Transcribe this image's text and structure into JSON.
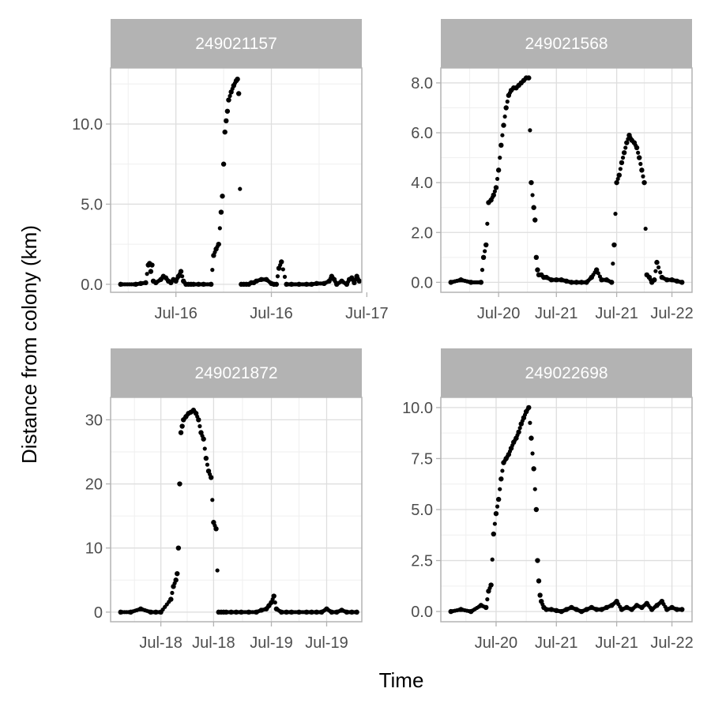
{
  "figure": {
    "xlabel": "Time",
    "ylabel": "Distance from colony (km)"
  },
  "colors": {
    "strip_fill": "#b3b3b3",
    "strip_text": "#ffffff",
    "panel_border": "#b3b3b3",
    "grid_major": "#dedede",
    "grid_minor": "#efefef",
    "point": "#000000",
    "tick_label": "#4d4d4d"
  },
  "chart_data": [
    {
      "type": "scatter",
      "id": "249021157",
      "title": "249021157",
      "xlabel": "Time",
      "ylabel": "Distance from colony (km)",
      "xlim": [
        0,
        100
      ],
      "ylim": [
        -0.5,
        13.5
      ],
      "y_ticks": [
        0,
        5,
        10
      ],
      "y_tick_labels": [
        "0.0",
        "5.0",
        "10.0"
      ],
      "x_ticks": [
        26,
        64,
        102
      ],
      "x_tick_labels": [
        "Jul-16",
        "Jul-16",
        "Jul-17"
      ],
      "grid": true,
      "x": [
        4,
        10,
        12,
        14,
        15,
        15.5,
        16,
        16.5,
        17,
        18,
        20,
        21,
        22,
        23,
        24,
        25,
        26,
        27,
        28,
        29,
        30,
        31,
        32,
        33,
        35,
        37,
        40,
        41,
        42,
        43,
        44,
        44.5,
        45,
        45.5,
        46,
        46.5,
        47,
        48,
        49,
        50,
        50.5,
        51,
        52,
        53,
        54,
        55,
        56,
        57,
        58,
        60,
        62,
        64,
        65,
        66,
        67,
        68,
        70,
        72,
        75,
        78,
        80,
        82,
        85,
        87,
        88,
        89,
        90,
        92,
        94,
        95,
        96,
        97,
        98,
        99
      ],
      "y": [
        0,
        0,
        0.05,
        0.1,
        1.2,
        1.3,
        0.8,
        1.2,
        0.2,
        0.1,
        0.3,
        0.5,
        0.4,
        0.2,
        0.1,
        0.3,
        0.2,
        0.5,
        0.8,
        0.2,
        0,
        0,
        0,
        0,
        0,
        0,
        0,
        1.8,
        2.2,
        2.5,
        4.5,
        5.5,
        7.5,
        9.5,
        10.2,
        10.8,
        11.5,
        12.0,
        12.4,
        12.7,
        12.8,
        11.9,
        0,
        0,
        0,
        0,
        0.1,
        0.1,
        0.2,
        0.3,
        0.3,
        0.05,
        0,
        0,
        1.0,
        1.4,
        0,
        0,
        0,
        0,
        0,
        0.05,
        0.05,
        0.2,
        0.5,
        0.3,
        0,
        0.2,
        0,
        0.3,
        0.4,
        0.1,
        0.5,
        0.2
      ]
    },
    {
      "type": "scatter",
      "id": "249021568",
      "title": "249021568",
      "xlabel": "Time",
      "ylabel": "Distance from colony (km)",
      "xlim": [
        0,
        100
      ],
      "ylim": [
        -0.4,
        8.6
      ],
      "y_ticks": [
        0,
        2,
        4,
        6,
        8
      ],
      "y_tick_labels": [
        "0.0",
        "2.0",
        "4.0",
        "6.0",
        "8.0"
      ],
      "x_ticks": [
        23,
        46,
        70,
        92
      ],
      "x_tick_labels": [
        "Jul-20",
        "Jul-21",
        "Jul-21",
        "Jul-22"
      ],
      "grid": true,
      "x": [
        4,
        8,
        12,
        16,
        17,
        18,
        19,
        20,
        21,
        22,
        23,
        24,
        25,
        26,
        27,
        28,
        29,
        30,
        31,
        32,
        33,
        34,
        35,
        36,
        37,
        37.5,
        38,
        38.5,
        39,
        40,
        41,
        42,
        44,
        46,
        48,
        50,
        52,
        54,
        56,
        58,
        60,
        62,
        64,
        66,
        68,
        69,
        70,
        71,
        72,
        73,
        74,
        75,
        76,
        77,
        78,
        79,
        80,
        81,
        82,
        83,
        84,
        85,
        86,
        88,
        90,
        92,
        94,
        96
      ],
      "y": [
        0,
        0.1,
        0,
        0,
        1.0,
        1.5,
        3.2,
        3.3,
        3.5,
        3.8,
        4.5,
        5.5,
        6.3,
        7.0,
        7.5,
        7.7,
        7.8,
        7.8,
        7.9,
        8.0,
        8.1,
        8.2,
        8.2,
        4.0,
        3.0,
        2.5,
        1.0,
        0.5,
        0.3,
        0.3,
        0.2,
        0.2,
        0.1,
        0.1,
        0.1,
        0.05,
        0,
        0,
        0,
        0,
        0.2,
        0.5,
        0.1,
        0.1,
        0,
        1.5,
        4.0,
        4.3,
        4.8,
        5.2,
        5.6,
        5.9,
        5.7,
        5.6,
        5.4,
        5.0,
        4.5,
        4.0,
        0.3,
        0.2,
        0,
        0.1,
        0.8,
        0.2,
        0.1,
        0.1,
        0.05,
        0
      ]
    },
    {
      "type": "scatter",
      "id": "249021872",
      "title": "249021872",
      "xlabel": "Time",
      "ylabel": "Distance from colony (km)",
      "xlim": [
        0,
        100
      ],
      "ylim": [
        -1.5,
        33.5
      ],
      "y_ticks": [
        0,
        10,
        20,
        30
      ],
      "y_tick_labels": [
        "0",
        "10",
        "20",
        "30"
      ],
      "x_ticks": [
        20,
        41,
        64,
        86
      ],
      "x_tick_labels": [
        "Jul-18",
        "Jul-18",
        "Jul-19",
        "Jul-19"
      ],
      "grid": true,
      "x": [
        4,
        8,
        12,
        16,
        18,
        20,
        24,
        25,
        26,
        26.5,
        27,
        27.5,
        28,
        28.5,
        29,
        30,
        31,
        32,
        33,
        34,
        35,
        36,
        37,
        38,
        39,
        40,
        41,
        42,
        43,
        44,
        45,
        46,
        48,
        50,
        52,
        55,
        58,
        60,
        62,
        63,
        64,
        65,
        66,
        68,
        70,
        72,
        75,
        78,
        80,
        82,
        84,
        86,
        88,
        90,
        92,
        94,
        96,
        98
      ],
      "y": [
        0,
        0,
        0.5,
        0,
        0,
        0,
        2,
        4,
        5,
        6,
        10,
        20,
        28,
        29,
        30,
        30.5,
        31,
        31.2,
        31.5,
        31,
        30,
        28,
        27,
        24,
        22,
        21,
        14,
        13,
        0,
        0,
        0,
        0,
        0,
        0,
        0,
        0,
        0,
        0.3,
        0.5,
        1.0,
        1.5,
        2.5,
        0.5,
        0,
        0,
        0,
        0,
        0,
        0,
        0,
        0,
        0.5,
        0,
        0,
        0.3,
        0,
        0,
        0
      ]
    },
    {
      "type": "scatter",
      "id": "249022698",
      "title": "249022698",
      "xlabel": "Time",
      "ylabel": "Distance from colony (km)",
      "xlim": [
        0,
        100
      ],
      "ylim": [
        -0.5,
        10.5
      ],
      "y_ticks": [
        0,
        2.5,
        5,
        7.5,
        10
      ],
      "y_tick_labels": [
        "0.0",
        "2.5",
        "5.0",
        "7.5",
        "10.0"
      ],
      "x_ticks": [
        22,
        46,
        70,
        92
      ],
      "x_tick_labels": [
        "Jul-20",
        "Jul-21",
        "Jul-21",
        "Jul-22"
      ],
      "grid": true,
      "x": [
        4,
        8,
        12,
        16,
        18,
        19,
        20,
        21,
        22,
        23,
        24,
        25,
        26,
        27,
        28,
        29,
        30,
        31,
        32,
        33,
        34,
        35,
        36,
        37,
        38,
        38.5,
        39,
        39.5,
        40,
        41,
        42,
        44,
        46,
        48,
        50,
        52,
        54,
        56,
        58,
        60,
        62,
        64,
        66,
        68,
        70,
        72,
        74,
        76,
        78,
        80,
        82,
        84,
        86,
        88,
        90,
        92,
        94,
        96
      ],
      "y": [
        0,
        0.1,
        0,
        0.3,
        0.2,
        1.0,
        1.3,
        3.8,
        4.8,
        5.5,
        6.5,
        7.3,
        7.5,
        7.7,
        8.0,
        8.3,
        8.5,
        8.8,
        9.2,
        9.5,
        9.8,
        10.0,
        8.5,
        7.0,
        5.0,
        2.5,
        1.5,
        0.8,
        0.5,
        0.2,
        0.1,
        0.1,
        0.05,
        0,
        0.1,
        0.2,
        0.1,
        0,
        0.1,
        0.2,
        0.1,
        0.1,
        0.2,
        0.3,
        0.5,
        0.1,
        0.2,
        0.1,
        0.3,
        0.2,
        0.4,
        0.1,
        0.3,
        0.5,
        0.1,
        0.2,
        0.1,
        0.1
      ]
    }
  ]
}
